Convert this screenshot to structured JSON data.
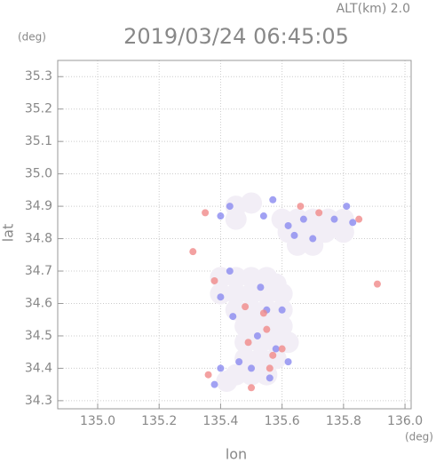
{
  "chart_data": {
    "type": "scatter",
    "title": "2019/03/24 06:45:05",
    "subtitle": "ALT(km) 2.0",
    "y_unit": "(deg)",
    "x_unit": "(deg)",
    "xlabel": "lon",
    "ylabel": "lat",
    "xlim": [
      134.87,
      136.02
    ],
    "ylim": [
      34.275,
      35.35
    ],
    "xticks": [
      {
        "value": 135.0,
        "label": "135.0"
      },
      135.2,
      135.4,
      135.6,
      135.8,
      {
        "value": 136.0,
        "label": "136.0"
      }
    ],
    "yticks": [
      35.3,
      35.2,
      35.1,
      {
        "value": 35.0,
        "label": "35.0"
      },
      34.9,
      34.8,
      34.7,
      34.6,
      34.5,
      34.4,
      34.3
    ],
    "grid": true,
    "series": [
      {
        "color": "#f2eef6",
        "x": [
          135.4,
          135.45,
          135.5,
          135.55,
          135.58,
          135.4,
          135.45,
          135.5,
          135.55,
          135.6,
          135.45,
          135.5,
          135.55,
          135.6,
          135.48,
          135.52,
          135.57,
          135.6,
          135.48,
          135.53,
          135.58,
          135.62,
          135.48,
          135.53,
          135.58,
          135.45,
          135.5,
          135.55,
          135.42,
          135.45,
          135.5,
          135.45,
          135.6,
          135.65,
          135.7,
          135.75,
          135.8,
          135.62,
          135.68,
          135.74,
          135.8,
          135.65,
          135.7
        ],
        "y": [
          34.68,
          34.68,
          34.68,
          34.68,
          34.66,
          34.63,
          34.63,
          34.63,
          34.63,
          34.63,
          34.58,
          34.58,
          34.58,
          34.58,
          34.53,
          34.53,
          34.53,
          34.53,
          34.48,
          34.48,
          34.48,
          34.48,
          34.43,
          34.43,
          34.43,
          34.38,
          34.38,
          34.38,
          34.36,
          34.9,
          34.91,
          34.86,
          34.86,
          34.86,
          34.86,
          34.86,
          34.86,
          34.82,
          34.82,
          34.82,
          34.82,
          34.78,
          34.78
        ]
      },
      {
        "color": "#8a8af0",
        "x": [
          135.43,
          135.4,
          135.62,
          135.67,
          135.77,
          135.83,
          135.81,
          135.64,
          135.7,
          135.55,
          135.4,
          135.44,
          135.52,
          135.58,
          135.62,
          135.46,
          135.4,
          135.5,
          135.38,
          135.56,
          135.6,
          135.43,
          135.53,
          135.54,
          135.57
        ],
        "y": [
          34.9,
          34.87,
          34.84,
          34.86,
          34.86,
          34.85,
          34.9,
          34.81,
          34.8,
          34.58,
          34.62,
          34.56,
          34.5,
          34.46,
          34.42,
          34.42,
          34.4,
          34.4,
          34.35,
          34.37,
          34.58,
          34.7,
          34.65,
          34.87,
          34.92
        ]
      },
      {
        "color": "#f08a8a",
        "x": [
          135.35,
          135.38,
          135.48,
          135.54,
          135.55,
          135.49,
          135.57,
          135.56,
          135.36,
          135.5,
          135.66,
          135.72,
          135.85,
          135.91,
          135.31,
          135.6
        ],
        "y": [
          34.88,
          34.67,
          34.59,
          34.57,
          34.52,
          34.48,
          34.44,
          34.4,
          34.38,
          34.34,
          34.9,
          34.88,
          34.86,
          34.66,
          34.76,
          34.46
        ]
      }
    ]
  }
}
